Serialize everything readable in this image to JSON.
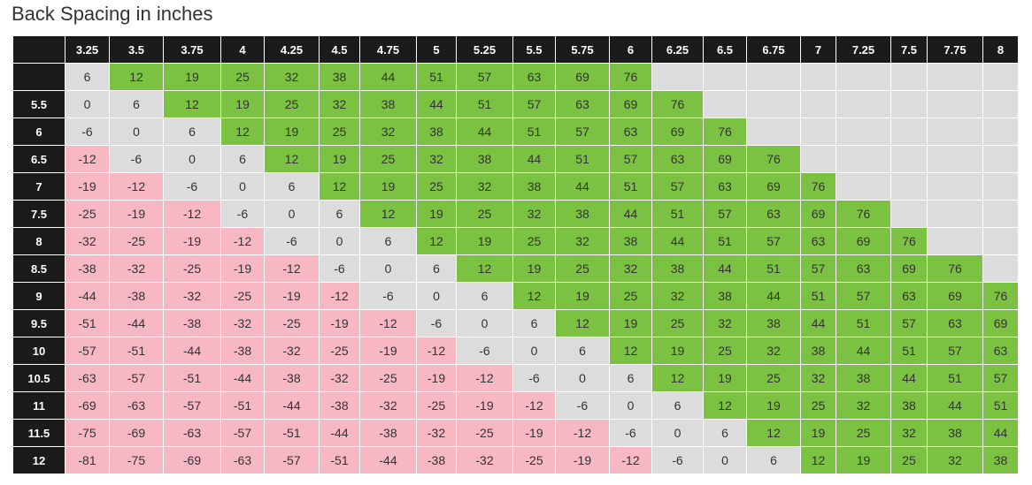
{
  "title": "Back Spacing in inches",
  "colors": {
    "positive": "#7cc242",
    "neutral": "#dcdcdc",
    "negative": "#f7b8c4",
    "header": "#1b1b1b"
  },
  "columns": [
    "3.25",
    "3.5",
    "3.75",
    "4",
    "4.25",
    "4.5",
    "4.75",
    "5",
    "5.25",
    "5.5",
    "5.75",
    "6",
    "6.25",
    "6.5",
    "6.75",
    "7",
    "7.25",
    "7.5",
    "7.75",
    "8"
  ],
  "rows": [
    {
      "label": "",
      "cells": [
        "6",
        "12",
        "19",
        "25",
        "32",
        "38",
        "44",
        "51",
        "57",
        "63",
        "69",
        "76",
        "",
        "",
        "",
        "",
        "",
        "",
        "",
        ""
      ]
    },
    {
      "label": "5.5",
      "cells": [
        "0",
        "6",
        "12",
        "19",
        "25",
        "32",
        "38",
        "44",
        "51",
        "57",
        "63",
        "69",
        "76",
        "",
        "",
        "",
        "",
        "",
        "",
        ""
      ]
    },
    {
      "label": "6",
      "cells": [
        "-6",
        "0",
        "6",
        "12",
        "19",
        "25",
        "32",
        "38",
        "44",
        "51",
        "57",
        "63",
        "69",
        "76",
        "",
        "",
        "",
        "",
        "",
        ""
      ]
    },
    {
      "label": "6.5",
      "cells": [
        "-12",
        "-6",
        "0",
        "6",
        "12",
        "19",
        "25",
        "32",
        "38",
        "44",
        "51",
        "57",
        "63",
        "69",
        "76",
        "",
        "",
        "",
        "",
        ""
      ]
    },
    {
      "label": "7",
      "cells": [
        "-19",
        "-12",
        "-6",
        "0",
        "6",
        "12",
        "19",
        "25",
        "32",
        "38",
        "44",
        "51",
        "57",
        "63",
        "69",
        "76",
        "",
        "",
        "",
        ""
      ]
    },
    {
      "label": "7.5",
      "cells": [
        "-25",
        "-19",
        "-12",
        "-6",
        "0",
        "6",
        "12",
        "19",
        "25",
        "32",
        "38",
        "44",
        "51",
        "57",
        "63",
        "69",
        "76",
        "",
        "",
        ""
      ]
    },
    {
      "label": "8",
      "cells": [
        "-32",
        "-25",
        "-19",
        "-12",
        "-6",
        "0",
        "6",
        "12",
        "19",
        "25",
        "32",
        "38",
        "44",
        "51",
        "57",
        "63",
        "69",
        "76",
        "",
        ""
      ]
    },
    {
      "label": "8.5",
      "cells": [
        "-38",
        "-32",
        "-25",
        "-19",
        "-12",
        "-6",
        "0",
        "6",
        "12",
        "19",
        "25",
        "32",
        "38",
        "44",
        "51",
        "57",
        "63",
        "69",
        "76",
        ""
      ]
    },
    {
      "label": "9",
      "cells": [
        "-44",
        "-38",
        "-32",
        "-25",
        "-19",
        "-12",
        "-6",
        "0",
        "6",
        "12",
        "19",
        "25",
        "32",
        "38",
        "44",
        "51",
        "57",
        "63",
        "69",
        "76"
      ]
    },
    {
      "label": "9.5",
      "cells": [
        "-51",
        "-44",
        "-38",
        "-32",
        "-25",
        "-19",
        "-12",
        "-6",
        "0",
        "6",
        "12",
        "19",
        "25",
        "32",
        "38",
        "44",
        "51",
        "57",
        "63",
        "69"
      ]
    },
    {
      "label": "10",
      "cells": [
        "-57",
        "-51",
        "-44",
        "-38",
        "-32",
        "-25",
        "-19",
        "-12",
        "-6",
        "0",
        "6",
        "12",
        "19",
        "25",
        "32",
        "38",
        "44",
        "51",
        "57",
        "63"
      ]
    },
    {
      "label": "10.5",
      "cells": [
        "-63",
        "-57",
        "-51",
        "-44",
        "-38",
        "-32",
        "-25",
        "-19",
        "-12",
        "-6",
        "0",
        "6",
        "12",
        "19",
        "25",
        "32",
        "38",
        "44",
        "51",
        "57"
      ]
    },
    {
      "label": "11",
      "cells": [
        "-69",
        "-63",
        "-57",
        "-51",
        "-44",
        "-38",
        "-32",
        "-25",
        "-19",
        "-12",
        "-6",
        "0",
        "6",
        "12",
        "19",
        "25",
        "32",
        "38",
        "44",
        "51"
      ]
    },
    {
      "label": "11.5",
      "cells": [
        "-75",
        "-69",
        "-63",
        "-57",
        "-51",
        "-44",
        "-38",
        "-32",
        "-25",
        "-19",
        "-12",
        "-6",
        "0",
        "6",
        "12",
        "19",
        "25",
        "32",
        "38",
        "44"
      ]
    },
    {
      "label": "12",
      "cells": [
        "-81",
        "-75",
        "-69",
        "-63",
        "-57",
        "-51",
        "-44",
        "-38",
        "-32",
        "-25",
        "-19",
        "-12",
        "-6",
        "0",
        "6",
        "12",
        "19",
        "25",
        "32",
        "38"
      ]
    }
  ]
}
